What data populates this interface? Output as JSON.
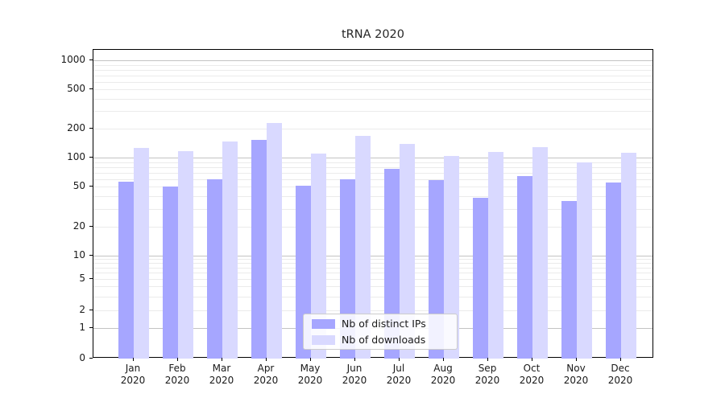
{
  "chart_data": {
    "type": "bar",
    "title": "tRNA 2020",
    "categories": [
      "Jan 2020",
      "Feb 2020",
      "Mar 2020",
      "Apr 2020",
      "May 2020",
      "Jun 2020",
      "Jul 2020",
      "Aug 2020",
      "Sep 2020",
      "Oct 2020",
      "Nov 2020",
      "Dec 2020"
    ],
    "series": [
      {
        "name": "Nb of distinct IPs",
        "color": "#a6a6ff",
        "values": [
          56,
          50,
          60,
          152,
          51,
          60,
          77,
          58,
          39,
          65,
          36,
          55
        ]
      },
      {
        "name": "Nb of downloads",
        "color": "#d9d9ff",
        "values": [
          126,
          118,
          148,
          228,
          111,
          168,
          140,
          104,
          114,
          128,
          90,
          112
        ]
      }
    ],
    "xlabel": "",
    "ylabel": "",
    "yscale": "log-with-zero-baseline",
    "yticks": [
      0,
      1,
      2,
      5,
      10,
      20,
      50,
      100,
      200,
      500,
      1000
    ],
    "ylim": [
      0,
      1300
    ],
    "grid": "horizontal major and log-minor gridlines",
    "legend_position": "lower center inside plot"
  },
  "colors": {
    "series1": "#a6a6ff",
    "series2": "#d9d9ff",
    "grid_major": "#c3c3c3",
    "grid_minor": "#ebebeb",
    "spine": "#000000",
    "text": "#1a1a1a",
    "legend_border": "#cccccc"
  }
}
